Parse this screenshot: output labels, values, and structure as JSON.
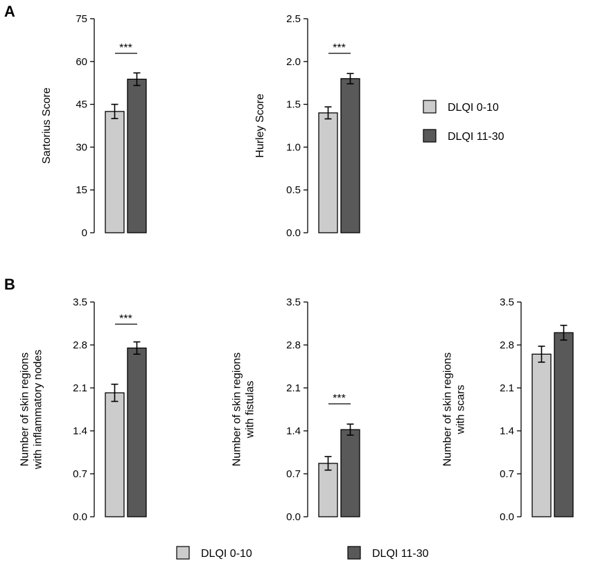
{
  "panels": [
    {
      "label": "A"
    },
    {
      "label": "B"
    }
  ],
  "colors": {
    "dlqi_low": "#cccccc",
    "dlqi_high": "#595959",
    "stroke": "#000000"
  },
  "legend_top": {
    "items": [
      "DLQI 0-10",
      "DLQI 11-30"
    ]
  },
  "legend_bottom": {
    "items": [
      "DLQI 0-10",
      "DLQI 11-30"
    ]
  },
  "chart_data": [
    {
      "type": "bar",
      "panel": "A",
      "categories": [
        "DLQI 0-10",
        "DLQI 11-30"
      ],
      "values": [
        42.5,
        53.8
      ],
      "errors": [
        2.5,
        2.2
      ],
      "ylabel": [
        "Sartorius Score"
      ],
      "ylim": [
        0,
        75
      ],
      "yticks": [
        "0",
        "15",
        "30",
        "45",
        "60",
        "75"
      ],
      "significance": "***"
    },
    {
      "type": "bar",
      "panel": "A",
      "categories": [
        "DLQI 0-10",
        "DLQI 11-30"
      ],
      "values": [
        1.4,
        1.8
      ],
      "errors": [
        0.07,
        0.06
      ],
      "ylabel": [
        "Hurley Score"
      ],
      "ylim": [
        0,
        2.5
      ],
      "yticks": [
        "0.0",
        "0.5",
        "1.0",
        "1.5",
        "2.0",
        "2.5"
      ],
      "significance": "***"
    },
    {
      "type": "bar",
      "panel": "B",
      "categories": [
        "DLQI 0-10",
        "DLQI 11-30"
      ],
      "values": [
        2.02,
        2.75
      ],
      "errors": [
        0.14,
        0.1
      ],
      "ylabel": [
        "Number of skin regions",
        "with inflammatory nodes"
      ],
      "ylim": [
        0,
        3.5
      ],
      "yticks": [
        "0.0",
        "0.7",
        "1.4",
        "2.1",
        "2.8",
        "3.5"
      ],
      "significance": "***"
    },
    {
      "type": "bar",
      "panel": "B",
      "categories": [
        "DLQI 0-10",
        "DLQI 11-30"
      ],
      "values": [
        0.87,
        1.42
      ],
      "errors": [
        0.11,
        0.09
      ],
      "ylabel": [
        "Number of skin regions",
        "with fistulas"
      ],
      "ylim": [
        0,
        3.5
      ],
      "yticks": [
        "0.0",
        "0.7",
        "1.4",
        "2.1",
        "2.8",
        "3.5"
      ],
      "significance": "***"
    },
    {
      "type": "bar",
      "panel": "B",
      "categories": [
        "DLQI 0-10",
        "DLQI 11-30"
      ],
      "values": [
        2.65,
        3.0
      ],
      "errors": [
        0.13,
        0.12
      ],
      "ylabel": [
        "Number of skin regions",
        "with  scars"
      ],
      "ylim": [
        0,
        3.5
      ],
      "yticks": [
        "0.0",
        "0.7",
        "1.4",
        "2.1",
        "2.8",
        "3.5"
      ],
      "significance": ""
    }
  ]
}
